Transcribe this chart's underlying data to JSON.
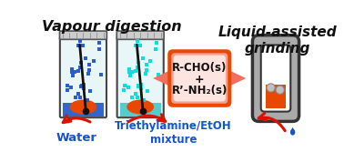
{
  "title_vapour": "Vapour digestion",
  "title_grinding": "Liquid-assisted\ngrinding",
  "label_water": "Water",
  "label_triethyl": "Triethylamine/EtOH\nmixture",
  "center_line1": "R-CHO(s)",
  "center_line2": "+",
  "center_line3": "R’-NH₂(s)",
  "bg_color": "#ffffff",
  "jar1_liquid_color": "#3366cc",
  "jar2_liquid_color": "#55cccc",
  "solid_color": "#e84800",
  "dot_color1": "#2255cc",
  "dot_color2": "#00dddd",
  "arrow_color": "#dd1100",
  "center_box_border": "#e84800",
  "center_box_fill": "#fce0e0",
  "blue_label_color": "#1155cc",
  "grinder_gray": "#aaaaaa",
  "grinder_dark": "#444444",
  "ball_color": "#aaaaaa"
}
